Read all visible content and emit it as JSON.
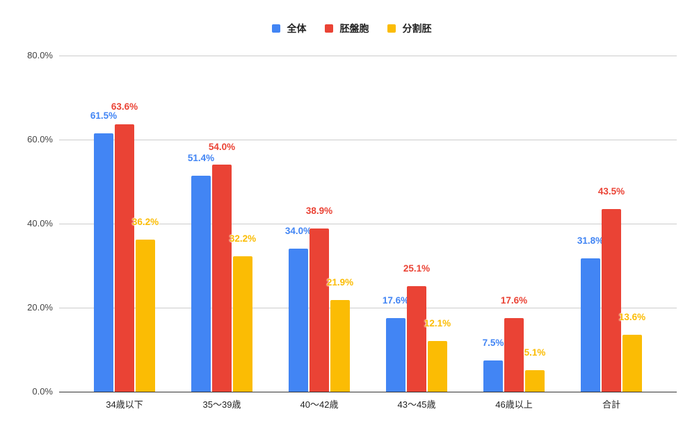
{
  "chart_data": {
    "type": "bar",
    "title": "",
    "xlabel": "",
    "ylabel": "",
    "ylim": [
      0,
      80
    ],
    "yticks": [
      "0.0%",
      "20.0%",
      "40.0%",
      "60.0%",
      "80.0%"
    ],
    "grid": true,
    "legend_position": "top",
    "categories": [
      "34歳以下",
      "35〜39歳",
      "40〜42歳",
      "43〜45歳",
      "46歳以上",
      "合計"
    ],
    "series": [
      {
        "name": "全体",
        "color": "#4285f4",
        "values": [
          61.5,
          51.4,
          34.0,
          17.6,
          7.5,
          31.8
        ],
        "labels": [
          "61.5%",
          "51.4%",
          "34.0%",
          "17.6%",
          "7.5%",
          "31.8%"
        ]
      },
      {
        "name": "胚盤胞",
        "color": "#ea4335",
        "values": [
          63.6,
          54.0,
          38.9,
          25.1,
          17.6,
          43.5
        ],
        "labels": [
          "63.6%",
          "54.0%",
          "38.9%",
          "25.1%",
          "17.6%",
          "43.5%"
        ]
      },
      {
        "name": "分割胚",
        "color": "#fbbc04",
        "values": [
          36.2,
          32.2,
          21.9,
          12.1,
          5.1,
          13.6
        ],
        "labels": [
          "36.2%",
          "32.2%",
          "21.9%",
          "12.1%",
          "5.1%",
          "13.6%"
        ]
      }
    ]
  },
  "legend": {
    "items": [
      {
        "label": "全体",
        "color": "#4285f4"
      },
      {
        "label": "胚盤胞",
        "color": "#ea4335"
      },
      {
        "label": "分割胚",
        "color": "#fbbc04"
      }
    ]
  }
}
